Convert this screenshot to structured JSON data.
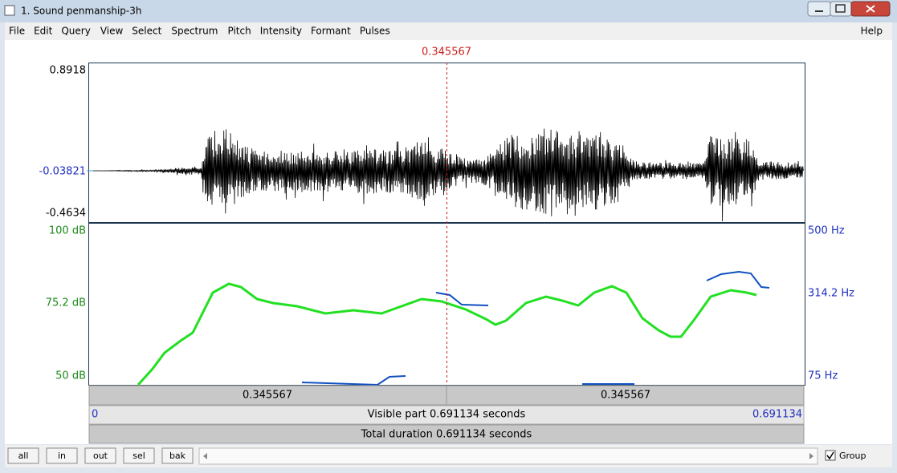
{
  "window": {
    "title": "1. Sound penmanship-3h"
  },
  "menu": {
    "items": [
      "File",
      "Edit",
      "Query",
      "View",
      "Select",
      "Spectrum",
      "Pitch",
      "Intensity",
      "Formant",
      "Pulses"
    ],
    "help": "Help"
  },
  "editor": {
    "cursor": "0.345567",
    "waveform_axis": {
      "max": "0.8918",
      "mid": "-0.03821",
      "min": "-0.4634"
    },
    "intensity_axis": {
      "top": "100 dB",
      "mid": "75.2 dB",
      "bottom": "50 dB"
    },
    "pitch_axis": {
      "top": "500 Hz",
      "mid": "314.2 Hz",
      "bottom": "75 Hz"
    },
    "selection_row": [
      "0.345567",
      "0.345567"
    ],
    "visible_row": {
      "start": "0",
      "label": "Visible part 0.691134 seconds",
      "end": "0.691134"
    },
    "total_duration": "Total duration 0.691134 seconds"
  },
  "toolbar": {
    "buttons": [
      "all",
      "in",
      "out",
      "sel",
      "bak"
    ],
    "group": "Group"
  }
}
